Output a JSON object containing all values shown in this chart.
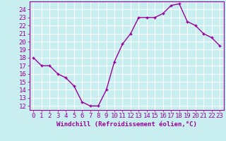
{
  "x": [
    0,
    1,
    2,
    3,
    4,
    5,
    6,
    7,
    8,
    9,
    10,
    11,
    12,
    13,
    14,
    15,
    16,
    17,
    18,
    19,
    20,
    21,
    22,
    23
  ],
  "y": [
    18,
    17,
    17,
    16,
    15.5,
    14.5,
    12.5,
    12,
    12,
    14,
    17.5,
    19.7,
    21,
    23,
    23,
    23,
    23.5,
    24.5,
    24.7,
    22.5,
    22,
    21,
    20.5,
    19.5
  ],
  "line_color": "#990099",
  "marker": "+",
  "bg_color": "#c8eef0",
  "grid_color": "#ffffff",
  "xlabel": "Windchill (Refroidissement éolien,°C)",
  "xlabel_color": "#990099",
  "tick_color": "#990099",
  "spine_color": "#990099",
  "ylim": [
    11.5,
    25
  ],
  "xlim": [
    -0.5,
    23.5
  ],
  "yticks": [
    12,
    13,
    14,
    15,
    16,
    17,
    18,
    19,
    20,
    21,
    22,
    23,
    24
  ],
  "xticks": [
    0,
    1,
    2,
    3,
    4,
    5,
    6,
    7,
    8,
    9,
    10,
    11,
    12,
    13,
    14,
    15,
    16,
    17,
    18,
    19,
    20,
    21,
    22,
    23
  ],
  "fontsize": 6.5,
  "line_width": 1.0,
  "marker_size": 3.5,
  "marker_edge_width": 1.0
}
